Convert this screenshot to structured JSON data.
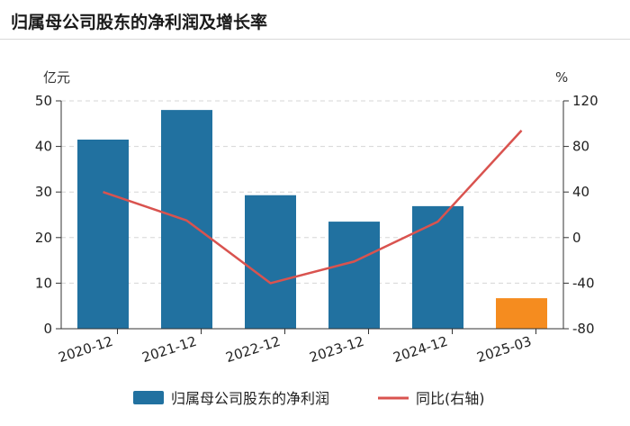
{
  "header": {
    "title": "归属母公司股东的净利润及增长率"
  },
  "chart_data": {
    "type": "bar",
    "categories": [
      "2020-12",
      "2021-12",
      "2022-12",
      "2023-12",
      "2024-12",
      "2025-03"
    ],
    "series": [
      {
        "name": "归属母公司股东的净利润",
        "type": "bar",
        "axis": "left",
        "values": [
          41.5,
          48.0,
          29.3,
          23.5,
          26.9,
          6.7
        ],
        "colors": [
          "#2171a0",
          "#2171a0",
          "#2171a0",
          "#2171a0",
          "#2171a0",
          "#f58c1f"
        ]
      },
      {
        "name": "同比(右轴)",
        "type": "line",
        "axis": "right",
        "color": "#d9534f",
        "values": [
          40,
          15,
          -40,
          -21,
          14,
          94
        ]
      }
    ],
    "y_left": {
      "unit": "亿元",
      "ylim": [
        0,
        50
      ],
      "ticks": [
        0,
        10,
        20,
        30,
        40,
        50
      ]
    },
    "y_right": {
      "unit": "%",
      "ylim": [
        -80,
        120
      ],
      "ticks": [
        -80,
        -40,
        0,
        40,
        80,
        120
      ]
    },
    "grid": true,
    "legend": "bottom"
  }
}
